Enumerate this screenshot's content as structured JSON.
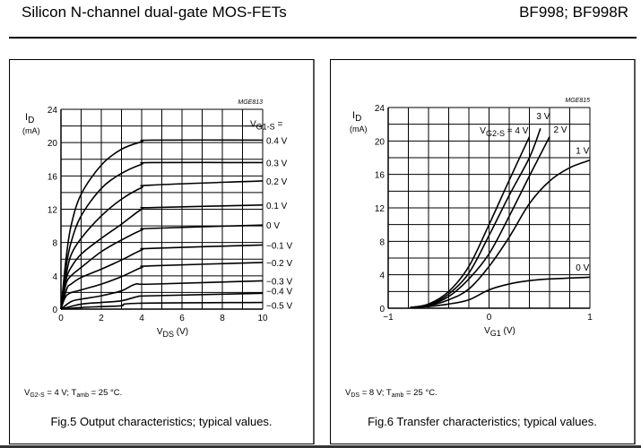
{
  "header": {
    "title": "Silicon N-channel dual-gate MOS-FETs",
    "part_numbers": "BF998; BF998R"
  },
  "chart_data": [
    {
      "type": "line",
      "code": "MGE813",
      "ylabel": {
        "main": "I",
        "sub": "D",
        "unit": "(mA)"
      },
      "xlabel": {
        "main": "V",
        "sub": "DS",
        "rest": " (V)"
      },
      "xlim": [
        0,
        10
      ],
      "ylim": [
        0,
        24
      ],
      "xticks": [
        0,
        2,
        4,
        6,
        8,
        10
      ],
      "yticks": [
        0,
        4,
        8,
        12,
        16,
        20,
        24
      ],
      "grid": {
        "x_step": 1,
        "y_step": 2
      },
      "legend_title": {
        "main": "V",
        "sub": "G1-S",
        "rest": " ="
      },
      "series": [
        {
          "name": "0.4 V",
          "points": [
            [
              0,
              0
            ],
            [
              0.25,
              6
            ],
            [
              0.5,
              10
            ],
            [
              1,
              13.8
            ],
            [
              2,
              17.3
            ],
            [
              3,
              19.2
            ],
            [
              4,
              20.1
            ],
            [
              4.5,
              20.3
            ],
            [
              10,
              20.3
            ]
          ]
        },
        {
          "name": "0.3 V",
          "points": [
            [
              0,
              0
            ],
            [
              0.25,
              5
            ],
            [
              0.5,
              8
            ],
            [
              1,
              11.2
            ],
            [
              2,
              14.5
            ],
            [
              3,
              16.3
            ],
            [
              4,
              17.4
            ],
            [
              4.5,
              17.6
            ],
            [
              10,
              17.6
            ]
          ]
        },
        {
          "name": "0.2 V",
          "points": [
            [
              0,
              0
            ],
            [
              0.25,
              4
            ],
            [
              0.5,
              6.5
            ],
            [
              1,
              8.5
            ],
            [
              2,
              11.2
            ],
            [
              3,
              13.2
            ],
            [
              4,
              14.6
            ],
            [
              4.5,
              14.9
            ],
            [
              10,
              15.4
            ]
          ]
        },
        {
          "name": "0.1 V",
          "points": [
            [
              0,
              0
            ],
            [
              0.25,
              3.5
            ],
            [
              0.5,
              5
            ],
            [
              1,
              6.6
            ],
            [
              2,
              8.5
            ],
            [
              3,
              10.2
            ],
            [
              4,
              12
            ],
            [
              4.5,
              12.2
            ],
            [
              10,
              12.5
            ]
          ]
        },
        {
          "name": "0 V",
          "points": [
            [
              0,
              0
            ],
            [
              0.25,
              3
            ],
            [
              0.5,
              4
            ],
            [
              1,
              5
            ],
            [
              2,
              6.9
            ],
            [
              3,
              8.3
            ],
            [
              4,
              9.5
            ],
            [
              4.5,
              9.7
            ],
            [
              10,
              10.1
            ]
          ]
        },
        {
          "name": "−0.1 V",
          "points": [
            [
              0,
              0
            ],
            [
              0.3,
              2.5
            ],
            [
              0.5,
              3
            ],
            [
              1,
              3.8
            ],
            [
              2,
              4.8
            ],
            [
              3,
              5.9
            ],
            [
              4,
              7.1
            ],
            [
              4.5,
              7.3
            ],
            [
              10,
              7.7
            ]
          ]
        },
        {
          "name": "−0.2 V",
          "points": [
            [
              0,
              0
            ],
            [
              0.3,
              1.7
            ],
            [
              1,
              2.3
            ],
            [
              2,
              3
            ],
            [
              3,
              3.9
            ],
            [
              4,
              5
            ],
            [
              4.5,
              5.2
            ],
            [
              10,
              5.6
            ]
          ]
        },
        {
          "name": "−0.3 V",
          "points": [
            [
              0,
              0
            ],
            [
              0.5,
              0.9
            ],
            [
              1,
              1.2
            ],
            [
              2,
              1.6
            ],
            [
              3,
              2.2
            ],
            [
              3.7,
              3
            ],
            [
              4.5,
              3
            ],
            [
              10,
              3.4
            ]
          ]
        },
        {
          "name": "−0.4 V",
          "points": [
            [
              0,
              0
            ],
            [
              1,
              0.6
            ],
            [
              2,
              0.8
            ],
            [
              3,
              1
            ],
            [
              3.8,
              1.5
            ],
            [
              4.5,
              1.6
            ],
            [
              10,
              1.9
            ]
          ]
        },
        {
          "name": "−0.5 V",
          "points": [
            [
              0,
              0
            ],
            [
              1,
              0.2
            ],
            [
              2,
              0.3
            ],
            [
              3,
              0.4
            ],
            [
              3.8,
              0.7
            ],
            [
              10,
              0.8
            ]
          ]
        }
      ],
      "conditions": {
        "p1": "V",
        "s1": "G2-S",
        "p2": " = 4 V; T",
        "s2": "amb",
        "p3": " = 25 °C."
      },
      "caption": "Fig.5  Output characteristics; typical values."
    },
    {
      "type": "line",
      "code": "MGE815",
      "ylabel": {
        "main": "I",
        "sub": "D",
        "unit": "(mA)"
      },
      "xlabel": {
        "main": "V",
        "sub": "G1",
        "rest": " (V)"
      },
      "xlim": [
        -1,
        1
      ],
      "ylim": [
        0,
        24
      ],
      "xticks": [
        "−1",
        "0",
        "1"
      ],
      "yticks": [
        0,
        4,
        8,
        12,
        16,
        20,
        24
      ],
      "grid": {
        "x_step": 0.2,
        "y_step": 2
      },
      "legend_title": {
        "main": "V",
        "sub": "G2-S",
        "rest": " = 4 V"
      },
      "series": [
        {
          "name": "4 V",
          "points": [
            [
              -0.78,
              0.1
            ],
            [
              -0.6,
              0.5
            ],
            [
              -0.4,
              2
            ],
            [
              -0.2,
              5
            ],
            [
              0,
              10
            ],
            [
              0.2,
              15.3
            ],
            [
              0.4,
              20.5
            ]
          ]
        },
        {
          "name": "3 V",
          "points": [
            [
              -0.78,
              0.1
            ],
            [
              -0.6,
              0.4
            ],
            [
              -0.4,
              1.7
            ],
            [
              -0.2,
              4.2
            ],
            [
              0,
              8.7
            ],
            [
              0.2,
              13.5
            ],
            [
              0.4,
              18
            ],
            [
              0.51,
              21.5
            ]
          ]
        },
        {
          "name": "2 V",
          "points": [
            [
              -0.78,
              0.1
            ],
            [
              -0.6,
              0.35
            ],
            [
              -0.4,
              1.4
            ],
            [
              -0.2,
              3.5
            ],
            [
              0,
              6.5
            ],
            [
              0.2,
              11
            ],
            [
              0.4,
              15.8
            ],
            [
              0.6,
              20.5
            ]
          ]
        },
        {
          "name": "1 V",
          "points": [
            [
              -0.78,
              0.1
            ],
            [
              -0.6,
              0.3
            ],
            [
              -0.4,
              1
            ],
            [
              -0.2,
              2.3
            ],
            [
              0,
              5
            ],
            [
              0.2,
              8.5
            ],
            [
              0.4,
              12.5
            ],
            [
              0.6,
              15.2
            ],
            [
              0.8,
              16.8
            ],
            [
              1,
              17.7
            ]
          ]
        },
        {
          "name": "0 V",
          "points": [
            [
              -0.78,
              0.05
            ],
            [
              -0.6,
              0.2
            ],
            [
              -0.4,
              0.5
            ],
            [
              -0.2,
              1
            ],
            [
              0,
              2.2
            ],
            [
              0.2,
              2.9
            ],
            [
              0.4,
              3.3
            ],
            [
              0.6,
              3.5
            ],
            [
              1,
              3.7
            ]
          ]
        }
      ],
      "conditions": {
        "p1": "V",
        "s1": "DS",
        "p2": " = 8 V; T",
        "s2": "amb",
        "p3": " = 25 °C."
      },
      "caption": "Fig.6  Transfer characteristics; typical values."
    }
  ]
}
